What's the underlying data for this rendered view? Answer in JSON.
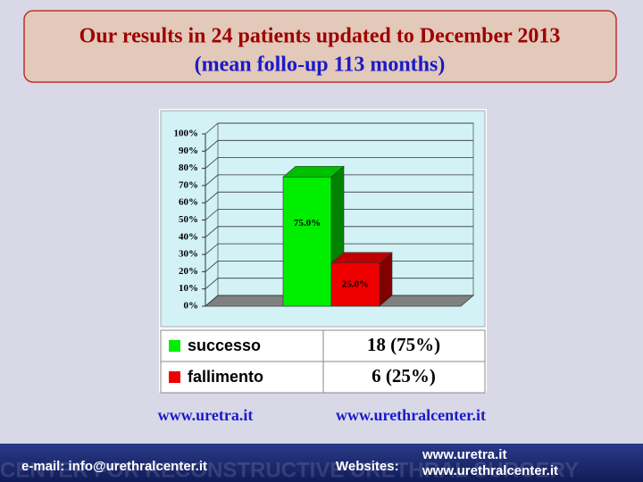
{
  "header": {
    "title": "Our results in 24 patients updated to December 2013",
    "subtitle": "(mean follo-up 113 months)"
  },
  "chart_data": {
    "type": "bar3d",
    "ylim": [
      0,
      100
    ],
    "yticks": [
      {
        "value": 0,
        "label": "0%"
      },
      {
        "value": 10,
        "label": "10%"
      },
      {
        "value": 20,
        "label": "20%"
      },
      {
        "value": 30,
        "label": "30%"
      },
      {
        "value": 40,
        "label": "40%"
      },
      {
        "value": 50,
        "label": "50%"
      },
      {
        "value": 60,
        "label": "60%"
      },
      {
        "value": 70,
        "label": "70%"
      },
      {
        "value": 80,
        "label": "80%"
      },
      {
        "value": 90,
        "label": "90%"
      },
      {
        "value": 100,
        "label": "100%"
      }
    ],
    "grid": true,
    "series": [
      {
        "name": "successo",
        "color": "#00ee00",
        "values": [
          75
        ],
        "value_labels": [
          "75.0%"
        ],
        "table_label": "18 (75%)"
      },
      {
        "name": "fallimento",
        "color": "#ee0000",
        "values": [
          25
        ],
        "value_labels": [
          "25.0%"
        ],
        "table_label": "6 (25%)"
      }
    ]
  },
  "links": [
    "www.uretra.it",
    "www.urethralcenter.it"
  ],
  "footer": {
    "email": "e-mail: info@urethralcenter.it",
    "websites_label": "Websites:",
    "websites": [
      "www.uretra.it",
      "www.urethralcenter.it"
    ],
    "watermark": "CENTER FOR RECONSTRUCTIVE URETHRAL SURGERY"
  }
}
